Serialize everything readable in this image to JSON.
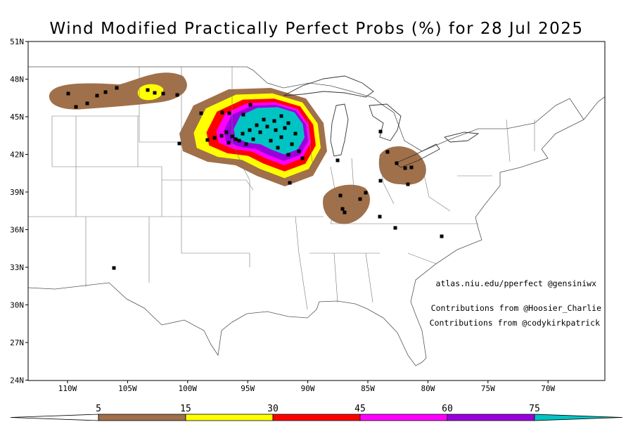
{
  "title": "Wind Modified Practically Perfect Probs (%) for 28 Jul 2025",
  "lat_labels": [
    "51N",
    "48N",
    "45N",
    "42N",
    "39N",
    "36N",
    "33N",
    "30N",
    "27N",
    "24N"
  ],
  "lon_labels": [
    "110W",
    "105W",
    "100W",
    "95W",
    "90W",
    "85W",
    "80W",
    "75W",
    "70W"
  ],
  "credits": [
    "atlas.niu.edu/pperfect @gensiniwx",
    "Contributions from @Hoosier_Charlie",
    "Contributions from @codykirkpatrick"
  ],
  "colorbar": {
    "levels": [
      5,
      15,
      30,
      45,
      60,
      75
    ],
    "colors": [
      "#a0704a",
      "#ffff00",
      "#ff0000",
      "#ff00ff",
      "#9a00dc",
      "#00c4c4"
    ]
  }
}
